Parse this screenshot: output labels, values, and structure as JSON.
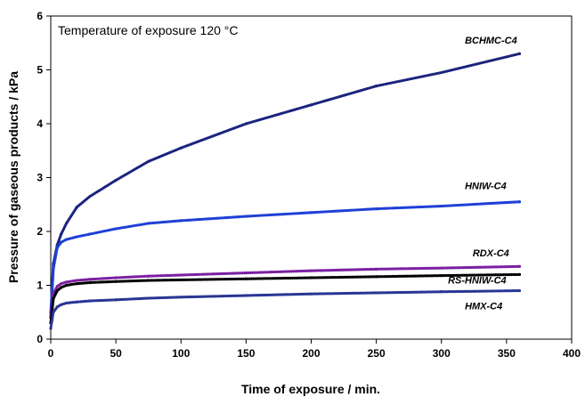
{
  "chart_data": {
    "type": "scatter",
    "annotation": "Temperature of exposure 120 °C",
    "xlabel": "Time of exposure / min.",
    "ylabel": "Pressure of gaseous products / kPa",
    "xlim": [
      0,
      400
    ],
    "ylim": [
      0,
      6
    ],
    "x_ticks": [
      "0",
      "50",
      "100",
      "150",
      "200",
      "250",
      "300",
      "350",
      "400"
    ],
    "y_ticks": [
      "0",
      "1",
      "2",
      "3",
      "4",
      "5",
      "6"
    ],
    "grid": false,
    "series": [
      {
        "name": "BCHMC-C4",
        "color": "#1a237e",
        "x": [
          0,
          2,
          5,
          8,
          12,
          20,
          30,
          50,
          75,
          100,
          150,
          200,
          250,
          300,
          360
        ],
        "y": [
          0.4,
          1.4,
          1.75,
          1.95,
          2.15,
          2.45,
          2.65,
          2.95,
          3.3,
          3.55,
          4.0,
          4.35,
          4.7,
          4.95,
          5.3
        ]
      },
      {
        "name": "HNIW-C4",
        "color": "#1e3fd6",
        "x": [
          0,
          2,
          5,
          8,
          12,
          20,
          30,
          50,
          75,
          100,
          150,
          200,
          250,
          300,
          360
        ],
        "y": [
          0.5,
          1.3,
          1.7,
          1.8,
          1.85,
          1.9,
          1.95,
          2.05,
          2.15,
          2.2,
          2.28,
          2.35,
          2.42,
          2.47,
          2.55
        ]
      },
      {
        "name": "RDX-C4",
        "color": "#7b1fa2",
        "x": [
          0,
          2,
          5,
          8,
          12,
          20,
          30,
          50,
          75,
          100,
          150,
          200,
          250,
          300,
          360
        ],
        "y": [
          0.4,
          0.85,
          0.98,
          1.03,
          1.06,
          1.09,
          1.11,
          1.14,
          1.17,
          1.19,
          1.23,
          1.27,
          1.3,
          1.32,
          1.35
        ]
      },
      {
        "name": "RS-HNIW-C4",
        "color": "#000000",
        "x": [
          0,
          2,
          5,
          8,
          12,
          20,
          30,
          50,
          75,
          100,
          150,
          200,
          250,
          300,
          360
        ],
        "y": [
          0.3,
          0.75,
          0.9,
          0.96,
          1.0,
          1.03,
          1.05,
          1.07,
          1.09,
          1.1,
          1.12,
          1.14,
          1.16,
          1.18,
          1.2
        ]
      },
      {
        "name": "HMX-C4",
        "color": "#283593",
        "x": [
          0,
          2,
          5,
          8,
          12,
          20,
          30,
          50,
          75,
          100,
          150,
          200,
          250,
          300,
          360
        ],
        "y": [
          0.2,
          0.5,
          0.6,
          0.64,
          0.67,
          0.69,
          0.71,
          0.73,
          0.76,
          0.78,
          0.81,
          0.84,
          0.86,
          0.88,
          0.9
        ]
      }
    ]
  }
}
